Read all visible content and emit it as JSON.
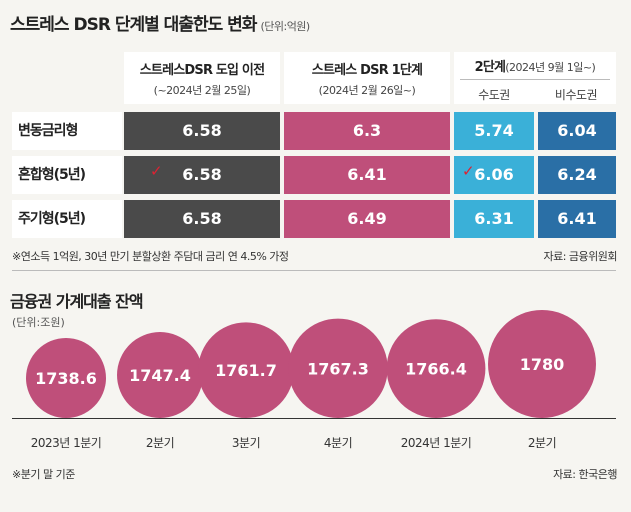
{
  "title": "스트레스 DSR 단계별 대출한도 변화",
  "title_unit": "(단위:억원)",
  "table": {
    "col1": {
      "main": "스트레스DSR 도입 이전",
      "sub": "(~2024년 2월 25일)"
    },
    "col2": {
      "main": "스트레스 DSR 1단계",
      "sub": "(2024년 2월 26일~)"
    },
    "col3": {
      "main": "2단계",
      "sub": "(2024년 9월 1일~)",
      "sub_a": "수도권",
      "sub_b": "비수도권"
    },
    "rows": [
      {
        "label": "변동금리형",
        "v1": "6.58",
        "v2": "6.3",
        "v3": "5.74",
        "v4": "6.04"
      },
      {
        "label": "혼합형(5년)",
        "v1": "6.58",
        "v2": "6.41",
        "v3": "6.06",
        "v4": "6.24"
      },
      {
        "label": "주기형(5년)",
        "v1": "6.58",
        "v2": "6.49",
        "v3": "6.31",
        "v4": "6.41"
      }
    ],
    "note": "※연소득 1억원, 30년 만기 분할상환 주담대 금리 연 4.5% 가정",
    "source": "자료: 금융위원회",
    "check_mark": "✓"
  },
  "section2": {
    "title": "금융권 가계대출 잔액",
    "unit": "(단위:조원)",
    "note": "※분기 말 기준",
    "source": "자료: 한국은행"
  },
  "chart_data": {
    "type": "bubble",
    "title": "금융권 가계대출 잔액",
    "ylabel": "(단위:조원)",
    "categories": [
      "2023년 1분기",
      "2분기",
      "3분기",
      "4분기",
      "2024년 1분기",
      "2분기"
    ],
    "values": [
      1738.6,
      1747.4,
      1761.7,
      1767.3,
      1766.4,
      1780
    ],
    "value_labels": [
      "1738.6",
      "1747.4",
      "1761.7",
      "1767.3",
      "1766.4",
      "1780"
    ],
    "color": "#bf4f7a"
  },
  "colors": {
    "dark": "#4a4a4a",
    "pink": "#bf4f7a",
    "cyan": "#3ab0d8",
    "blue": "#2a6fa6",
    "background": "#f6f5f1"
  }
}
